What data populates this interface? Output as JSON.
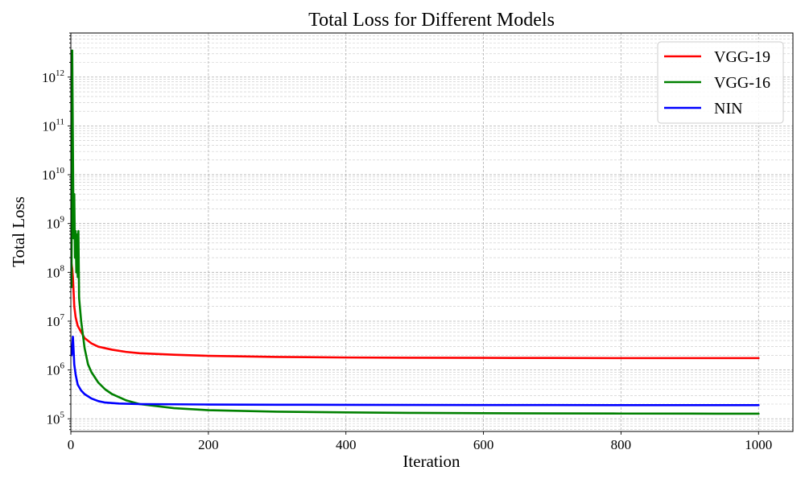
{
  "chart_data": {
    "type": "line",
    "title": "Total Loss for Different Models",
    "xlabel": "Iteration",
    "ylabel": "Total Loss",
    "xlim": [
      0,
      1050
    ],
    "ylim": [
      55000,
      8000000000000
    ],
    "yscale": "log",
    "x_ticks": [
      "0",
      "200",
      "400",
      "600",
      "800",
      "1000"
    ],
    "y_ticks": [
      {
        "base": "10",
        "exp": "5"
      },
      {
        "base": "10",
        "exp": "6"
      },
      {
        "base": "10",
        "exp": "7"
      },
      {
        "base": "10",
        "exp": "8"
      },
      {
        "base": "10",
        "exp": "9"
      },
      {
        "base": "10",
        "exp": "10"
      },
      {
        "base": "10",
        "exp": "11"
      },
      {
        "base": "10",
        "exp": "12"
      }
    ],
    "grid": true,
    "legend_position": "top-right",
    "series": [
      {
        "name": "VGG-19",
        "color": "#ff0000",
        "points": [
          [
            1,
            150000000
          ],
          [
            2,
            120000000
          ],
          [
            3,
            80000000
          ],
          [
            4,
            40000000
          ],
          [
            5,
            20000000
          ],
          [
            7,
            12000000
          ],
          [
            10,
            8000000
          ],
          [
            15,
            6000000
          ],
          [
            20,
            4500000
          ],
          [
            30,
            3500000
          ],
          [
            40,
            3000000
          ],
          [
            60,
            2600000
          ],
          [
            80,
            2350000
          ],
          [
            100,
            2200000
          ],
          [
            150,
            2050000
          ],
          [
            200,
            1950000
          ],
          [
            300,
            1850000
          ],
          [
            400,
            1800000
          ],
          [
            500,
            1780000
          ],
          [
            600,
            1770000
          ],
          [
            700,
            1760000
          ],
          [
            800,
            1750000
          ],
          [
            900,
            1750000
          ],
          [
            1000,
            1750000
          ]
        ]
      },
      {
        "name": "VGG-16",
        "color": "#008000",
        "points": [
          [
            1,
            50000000
          ],
          [
            2,
            3500000000000
          ],
          [
            3,
            40000000000
          ],
          [
            4,
            500000000
          ],
          [
            5,
            4000000000
          ],
          [
            6,
            200000000
          ],
          [
            7,
            700000000
          ],
          [
            8,
            100000000
          ],
          [
            9,
            600000000
          ],
          [
            10,
            80000000
          ],
          [
            11,
            700000000
          ],
          [
            12,
            30000000
          ],
          [
            15,
            10000000
          ],
          [
            20,
            2800000
          ],
          [
            25,
            1300000
          ],
          [
            30,
            900000
          ],
          [
            40,
            550000
          ],
          [
            50,
            400000
          ],
          [
            60,
            320000
          ],
          [
            80,
            240000
          ],
          [
            100,
            200000
          ],
          [
            150,
            165000
          ],
          [
            200,
            150000
          ],
          [
            300,
            140000
          ],
          [
            400,
            135000
          ],
          [
            500,
            132000
          ],
          [
            600,
            130000
          ],
          [
            700,
            129000
          ],
          [
            800,
            128000
          ],
          [
            900,
            127500
          ],
          [
            1000,
            127000
          ]
        ]
      },
      {
        "name": "NIN",
        "color": "#0000ff",
        "points": [
          [
            1,
            2000000
          ],
          [
            2,
            3000000
          ],
          [
            3,
            4800000
          ],
          [
            4,
            2500000
          ],
          [
            5,
            1300000
          ],
          [
            7,
            800000
          ],
          [
            10,
            500000
          ],
          [
            15,
            380000
          ],
          [
            20,
            320000
          ],
          [
            30,
            260000
          ],
          [
            40,
            230000
          ],
          [
            50,
            215000
          ],
          [
            70,
            205000
          ],
          [
            100,
            200000
          ],
          [
            150,
            198000
          ],
          [
            200,
            196000
          ],
          [
            300,
            194000
          ],
          [
            400,
            193000
          ],
          [
            500,
            192000
          ],
          [
            600,
            191500
          ],
          [
            700,
            191000
          ],
          [
            800,
            190500
          ],
          [
            900,
            190000
          ],
          [
            1000,
            190000
          ]
        ]
      }
    ]
  }
}
